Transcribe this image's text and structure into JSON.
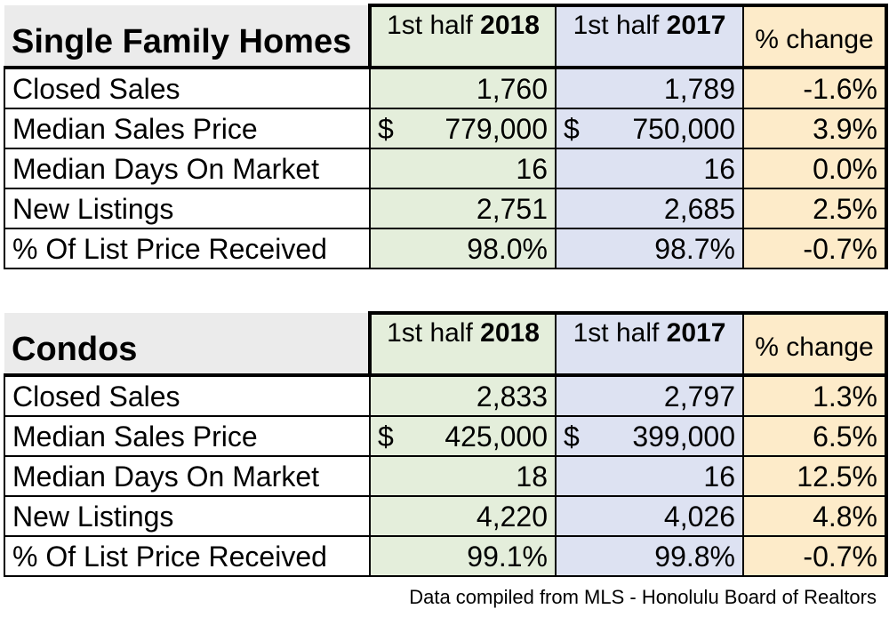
{
  "colors": {
    "col_2018": "#e4eedb",
    "col_2017": "#dde2f2",
    "col_change": "#fdebc9",
    "title_bg": "#ebebeb"
  },
  "columns": {
    "col1_prefix": "1st half ",
    "col1_year": "2018",
    "col2_prefix": "1st half ",
    "col2_year": "2017",
    "col3": "% change"
  },
  "tables": [
    {
      "title": "Single Family Homes",
      "rows": [
        {
          "label": "Closed Sales",
          "v2018": "1,760",
          "v2017": "1,789",
          "change": "-1.6%"
        },
        {
          "label": "Median Sales Price",
          "v2018_sym": "$",
          "v2018": "779,000",
          "v2017_sym": "$",
          "v2017": "750,000",
          "change": "3.9%"
        },
        {
          "label": "Median Days On Market",
          "v2018": "16",
          "v2017": "16",
          "change": "0.0%"
        },
        {
          "label": "New Listings",
          "v2018": "2,751",
          "v2017": "2,685",
          "change": "2.5%"
        },
        {
          "label": "% Of List Price Received",
          "v2018": "98.0%",
          "v2017": "98.7%",
          "change": "-0.7%"
        }
      ]
    },
    {
      "title": "Condos",
      "rows": [
        {
          "label": "Closed Sales",
          "v2018": "2,833",
          "v2017": "2,797",
          "change": "1.3%"
        },
        {
          "label": "Median Sales Price",
          "v2018_sym": "$",
          "v2018": "425,000",
          "v2017_sym": "$",
          "v2017": "399,000",
          "change": "6.5%"
        },
        {
          "label": "Median Days On Market",
          "v2018": "18",
          "v2017": "16",
          "change": "12.5%"
        },
        {
          "label": "New Listings",
          "v2018": "4,220",
          "v2017": "4,026",
          "change": "4.8%"
        },
        {
          "label": "% Of List Price Received",
          "v2018": "99.1%",
          "v2017": "99.8%",
          "change": "-0.7%"
        }
      ]
    }
  ],
  "source": "Data compiled from MLS - Honolulu Board of Realtors"
}
